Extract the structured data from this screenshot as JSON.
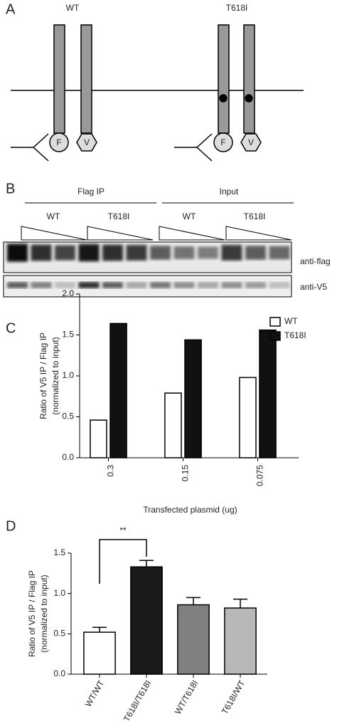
{
  "panel_a": {
    "label": "A",
    "groups": [
      "WT",
      "T618I"
    ],
    "domains": [
      "F",
      "V",
      "F",
      "V"
    ]
  },
  "panel_b": {
    "label": "B",
    "ip_groups": [
      "Flag IP",
      "Input"
    ],
    "lanes": [
      "WT",
      "T618I",
      "WT",
      "T618I"
    ],
    "blots": [
      "anti-flag",
      "anti-V5"
    ]
  },
  "chart_data": [
    {
      "type": "bar",
      "panel_label": "C",
      "ylabel": [
        "Ratio of V5 IP / Flag IP",
        "(normalized to input)"
      ],
      "xlabel": "Transfected plasmid (ug)",
      "categories": [
        "0.3",
        "0.15",
        "0.075"
      ],
      "series": [
        {
          "name": "WT",
          "color": "#ffffff",
          "values": [
            0.46,
            0.79,
            0.98
          ]
        },
        {
          "name": "T618I",
          "color": "#111111",
          "values": [
            1.64,
            1.44,
            1.56
          ]
        }
      ],
      "ylim": [
        0,
        2
      ],
      "yticks": [
        {
          "value": 0,
          "label": "0.0"
        },
        {
          "value": 0.5,
          "label": "0.5"
        },
        {
          "value": 1,
          "label": "1.0"
        },
        {
          "value": 1.5,
          "label": "1.5"
        },
        {
          "value": 2,
          "label": "2.0"
        }
      ],
      "legend": "top-right"
    },
    {
      "type": "bar",
      "panel_label": "D",
      "ylabel": [
        "Ratio of V5 IP / Flag IP",
        "(normalized to input)"
      ],
      "categories": [
        "WT/WT",
        "T618I/T618I",
        "WT/T618I",
        "T618I/WT"
      ],
      "values": [
        0.52,
        1.33,
        0.86,
        0.82
      ],
      "errors": [
        0.06,
        0.08,
        0.09,
        0.11
      ],
      "colors": [
        "#ffffff",
        "#1a1a1a",
        "#808080",
        "#b8b8b8"
      ],
      "ylim": [
        0,
        1.5
      ],
      "yticks": [
        {
          "value": 0,
          "label": "0.0"
        },
        {
          "value": 0.5,
          "label": "0.5"
        },
        {
          "value": 1,
          "label": "1.0"
        },
        {
          "value": 1.5,
          "label": "1.5"
        }
      ],
      "annotation": "**"
    }
  ]
}
